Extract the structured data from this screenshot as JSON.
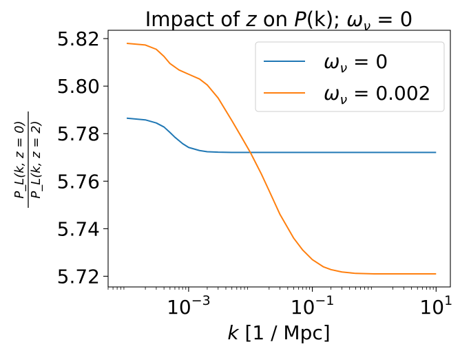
{
  "chart_data": {
    "type": "line",
    "title": "Impact of z on P(k); ω_ν = 0",
    "title_parts": {
      "prefix": "Impact of ",
      "var": "z",
      "mid": " on ",
      "fn": "P",
      "arg": "(k); ",
      "omega": "ω",
      "nu": "ν",
      "eq": " = 0"
    },
    "xlabel": "k [1 / Mpc]",
    "xlabel_parts": {
      "var": "k",
      "rest": " [1 / Mpc]"
    },
    "ylabel": "P_L(k, z=0) / P_L(k, z=2)",
    "ylabel_parts": {
      "numerator": "P_L(k, z = 0)",
      "denominator": "P_L(k, z = 2)"
    },
    "xscale": "log",
    "xlim": [
      5e-05,
      17
    ],
    "ylim": [
      5.7155,
      5.8235
    ],
    "xticks": [
      {
        "value": 0.001,
        "base": "10",
        "exp": "−3"
      },
      {
        "value": 0.1,
        "base": "10",
        "exp": "−1"
      },
      {
        "value": 10,
        "base": "10",
        "exp": "1"
      }
    ],
    "yticks": [
      {
        "value": 5.72,
        "label": "5.72"
      },
      {
        "value": 5.74,
        "label": "5.74"
      },
      {
        "value": 5.76,
        "label": "5.76"
      },
      {
        "value": 5.78,
        "label": "5.78"
      },
      {
        "value": 5.8,
        "label": "5.80"
      },
      {
        "value": 5.82,
        "label": "5.82"
      }
    ],
    "grid": false,
    "legend_position": "top-right",
    "series": [
      {
        "name": "ω_ν = 0",
        "label_parts": {
          "omega": "ω",
          "nu": "ν",
          "eq": " = 0"
        },
        "color": "#1f77b4",
        "x": [
          0.0001,
          0.0002,
          0.0003,
          0.0004,
          0.0005,
          0.0006,
          0.0008,
          0.001,
          0.0015,
          0.002,
          0.003,
          0.005,
          0.01,
          0.1,
          1,
          10
        ],
        "y": [
          5.7865,
          5.7858,
          5.7845,
          5.7828,
          5.7805,
          5.7785,
          5.7758,
          5.7742,
          5.7729,
          5.7724,
          5.7722,
          5.7721,
          5.7721,
          5.7721,
          5.7721,
          5.7721
        ]
      },
      {
        "name": "ω_ν = 0.002",
        "label_parts": {
          "omega": "ω",
          "nu": "ν",
          "eq": " = 0.002"
        },
        "color": "#ff7f0e",
        "x": [
          0.0001,
          0.0002,
          0.0003,
          0.0004,
          0.0005,
          0.0007,
          0.001,
          0.0015,
          0.002,
          0.003,
          0.005,
          0.007,
          0.01,
          0.015,
          0.02,
          0.03,
          0.05,
          0.07,
          0.1,
          0.15,
          0.2,
          0.3,
          0.5,
          1,
          2,
          5,
          10
        ],
        "y": [
          5.818,
          5.8173,
          5.8155,
          5.8125,
          5.8095,
          5.8068,
          5.805,
          5.803,
          5.8005,
          5.795,
          5.7855,
          5.779,
          5.772,
          5.763,
          5.756,
          5.746,
          5.736,
          5.731,
          5.727,
          5.724,
          5.7228,
          5.7218,
          5.7212,
          5.721,
          5.721,
          5.721,
          5.721
        ]
      }
    ]
  }
}
